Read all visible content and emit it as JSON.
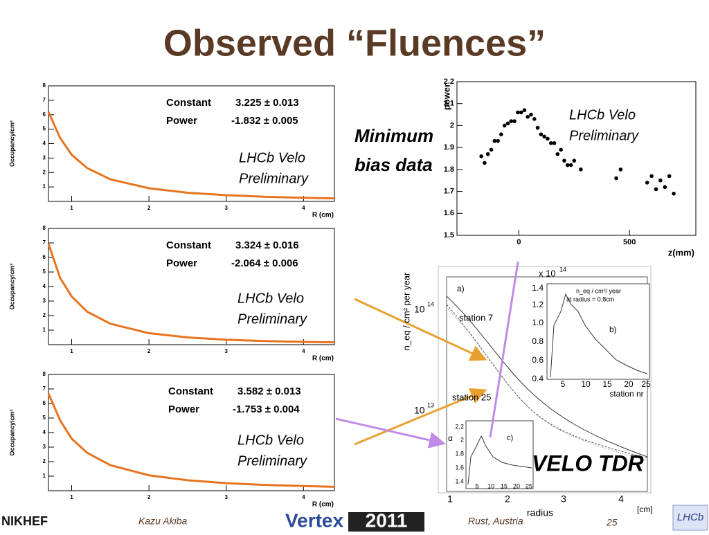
{
  "title": "Observed “Fluences”",
  "minimum_bias": [
    "Minimum",
    "bias data"
  ],
  "velo_tdr": "VELO TDR",
  "footer": {
    "org": "NIKHEF",
    "author": "Kazu Akiba",
    "conference": "Vertex",
    "year": "2011",
    "location": "Rust,   Austria",
    "page": "25",
    "lhcb_logo": "LHCb"
  },
  "chart_data": [
    {
      "type": "line",
      "y_label": "Occupancy/cm²",
      "x_label": "R (cm)",
      "color": "#e8731f",
      "annotations": [
        "Constant",
        "3.225 ± 0.013",
        "Power",
        "-1.832 ± 0.005",
        "LHCb Velo",
        "Preliminary"
      ],
      "x": [
        0.7,
        0.85,
        1,
        1.2,
        1.5,
        2,
        2.5,
        3,
        3.5,
        4,
        4.4
      ],
      "values": [
        6.2,
        4.4,
        3.23,
        2.31,
        1.53,
        0.91,
        0.6,
        0.43,
        0.32,
        0.25,
        0.21
      ],
      "xlim": [
        0.7,
        4.4
      ],
      "ylim": [
        0,
        8
      ],
      "xticks": [
        1,
        2,
        3,
        4
      ],
      "yticks": [
        1,
        2,
        3,
        4,
        5,
        6,
        7,
        8
      ]
    },
    {
      "type": "line",
      "y_label": "Occupancy/cm²",
      "x_label": "R (cm)",
      "color": "#e8731f",
      "annotations": [
        "Constant",
        "3.324 ± 0.016",
        "Power",
        "-2.064 ± 0.006",
        "LHCb Velo",
        "Preliminary"
      ],
      "x": [
        0.7,
        0.85,
        1,
        1.2,
        1.5,
        2,
        2.5,
        3,
        3.5,
        4,
        4.4
      ],
      "values": [
        6.94,
        4.6,
        3.32,
        2.27,
        1.44,
        0.79,
        0.5,
        0.34,
        0.25,
        0.19,
        0.16
      ],
      "xlim": [
        0.7,
        4.4
      ],
      "ylim": [
        0,
        8
      ],
      "xticks": [
        1,
        2,
        3,
        4
      ],
      "yticks": [
        1,
        2,
        3,
        4,
        5,
        6,
        7,
        8
      ]
    },
    {
      "type": "line",
      "y_label": "Occupancy/cm²",
      "x_label": "R (cm)",
      "color": "#e8731f",
      "annotations": [
        "Constant",
        "3.582 ± 0.013",
        "Power",
        "-1.753 ± 0.004",
        "LHCb Velo",
        "Preliminary"
      ],
      "x": [
        0.7,
        0.85,
        1,
        1.2,
        1.5,
        2,
        2.5,
        3,
        3.5,
        4,
        4.4
      ],
      "values": [
        6.69,
        4.85,
        3.58,
        2.61,
        1.76,
        1.06,
        0.72,
        0.52,
        0.4,
        0.32,
        0.27
      ],
      "xlim": [
        0.7,
        4.4
      ],
      "ylim": [
        0,
        8
      ],
      "xticks": [
        1,
        2,
        3,
        4
      ],
      "yticks": [
        1,
        2,
        3,
        4,
        5,
        6,
        7,
        8
      ]
    },
    {
      "type": "scatter",
      "y_label": "power",
      "x_label": "z(mm)",
      "color": "#000000",
      "annotations": [
        "LHCb Velo",
        "Preliminary"
      ],
      "x": [
        -170,
        -155,
        -140,
        -125,
        -110,
        -95,
        -80,
        -65,
        -50,
        -35,
        -20,
        -5,
        10,
        25,
        40,
        55,
        70,
        85,
        100,
        115,
        130,
        145,
        160,
        175,
        190,
        205,
        220,
        235,
        250,
        280,
        440,
        460,
        580,
        600,
        620,
        640,
        660,
        680,
        700
      ],
      "values": [
        1.86,
        1.83,
        1.87,
        1.89,
        1.93,
        1.93,
        1.96,
        2.0,
        2.01,
        2.02,
        2.02,
        2.06,
        2.06,
        2.07,
        2.04,
        2.05,
        2.03,
        1.99,
        1.96,
        1.95,
        1.94,
        1.92,
        1.92,
        1.87,
        1.89,
        1.84,
        1.82,
        1.82,
        1.84,
        1.8,
        1.76,
        1.8,
        1.74,
        1.77,
        1.71,
        1.75,
        1.72,
        1.77,
        1.69
      ],
      "xlim": [
        -280,
        800
      ],
      "ylim": [
        1.5,
        2.2
      ],
      "xticks": [
        0,
        500
      ],
      "yticks": [
        1.5,
        1.6,
        1.7,
        1.8,
        1.9,
        2,
        2.1,
        2.2
      ]
    }
  ],
  "tdr_figure": {
    "y_label": "n_eq / cm² per year",
    "x_label": "radius",
    "x_unit": "[cm]",
    "exponent_note": "x 10",
    "exponent": "14",
    "panel_a": "a)",
    "station_7": "station 7",
    "station_25": "station 25",
    "y_ticks": [
      "10",
      "10"
    ],
    "y_tick_exponents": [
      "14",
      "13"
    ],
    "x_ticks": [
      "1",
      "2",
      "3",
      "4"
    ],
    "inset_b": {
      "label": "b)",
      "title": "n_eq / cm²/ year",
      "subtitle": "at radius = 0.8cm",
      "x_label": "station nr",
      "y_ticks": [
        "1.4",
        "1.2",
        "1.0",
        "0.8",
        "0.6",
        "0.4"
      ],
      "x_ticks": [
        "5",
        "10",
        "15",
        "20",
        "25"
      ]
    },
    "inset_c": {
      "label": "c)",
      "y_label": "α",
      "y_ticks": [
        "2.2",
        "2",
        "1.8",
        "1.6",
        "1.4"
      ],
      "x_ticks": [
        "5",
        "10",
        "15",
        "20",
        "25"
      ]
    }
  }
}
